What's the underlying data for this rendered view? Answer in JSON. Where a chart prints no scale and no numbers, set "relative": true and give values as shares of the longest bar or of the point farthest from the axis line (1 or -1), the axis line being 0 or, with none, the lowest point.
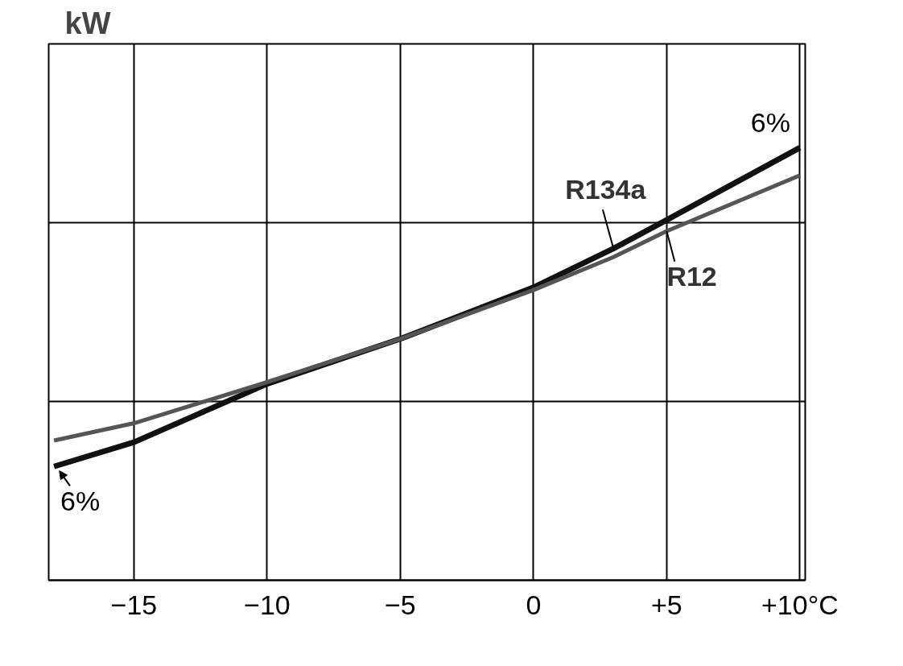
{
  "chart_data": {
    "type": "line",
    "relative": true,
    "ylabel": "kW",
    "x": [
      -18,
      -15,
      -10,
      -5,
      0,
      3,
      5,
      10
    ],
    "series": [
      {
        "name": "R134a",
        "color": "#111111",
        "values": [
          0.263,
          0.319,
          0.454,
          0.558,
          0.677,
          0.767,
          0.833,
          1
        ]
      },
      {
        "name": "R12",
        "color": "#555555",
        "values": [
          0.323,
          0.363,
          0.458,
          0.558,
          0.671,
          0.747,
          0.807,
          0.936
        ]
      }
    ],
    "xlim": [
      -18.2,
      10.2
    ],
    "xticks": [
      {
        "value": -15,
        "label": "−15"
      },
      {
        "value": -10,
        "label": "−10"
      },
      {
        "value": -5,
        "label": "−5"
      },
      0,
      {
        "value": 5,
        "label": "+5"
      },
      {
        "value": 10,
        "label": "+10°C"
      }
    ],
    "annotations": [
      {
        "text": "6%",
        "x": 10,
        "y": 1
      },
      {
        "text": "6%",
        "x": -18,
        "y": 0.263
      }
    ],
    "grid": true,
    "marker": "none",
    "line_style": "solid"
  }
}
